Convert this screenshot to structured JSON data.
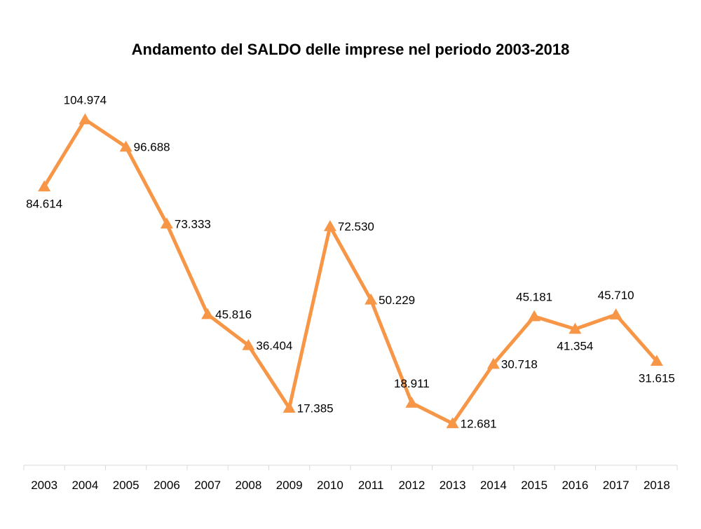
{
  "chart_data": {
    "type": "line",
    "title": "Andamento del SALDO delle imprese nel periodo 2003-2018",
    "xlabel": "",
    "ylabel": "",
    "categories": [
      "2003",
      "2004",
      "2005",
      "2006",
      "2007",
      "2008",
      "2009",
      "2010",
      "2011",
      "2012",
      "2013",
      "2014",
      "2015",
      "2016",
      "2017",
      "2018"
    ],
    "series": [
      {
        "values": [
          84614,
          104974,
          96688,
          73333,
          45816,
          36404,
          17385,
          72530,
          50229,
          18911,
          12681,
          30718,
          45181,
          41354,
          45710,
          31615
        ],
        "labels": [
          "84.614",
          "104.974",
          "96.688",
          "73.333",
          "45.816",
          "36.404",
          "17.385",
          "72.530",
          "50.229",
          "18.911",
          "12.681",
          "30.718",
          "45.181",
          "41.354",
          "45.710",
          "31.615"
        ],
        "color": "#F79646",
        "marker": "triangle"
      }
    ],
    "label_positions": [
      "below",
      "above",
      "right",
      "right",
      "right",
      "right",
      "right",
      "right",
      "right",
      "above",
      "right",
      "right",
      "above",
      "below",
      "above",
      "below"
    ],
    "ylim": [
      0,
      120000
    ],
    "grid": false,
    "legend": "none",
    "axis_color": "#d9d9d9"
  }
}
